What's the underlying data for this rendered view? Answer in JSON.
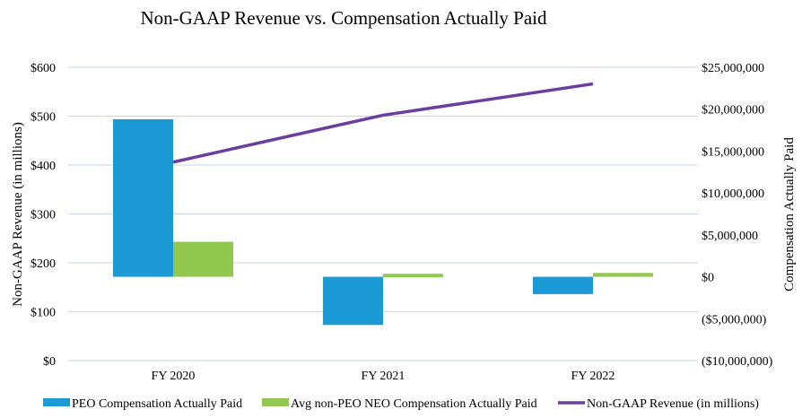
{
  "chart_data": {
    "type": "bar",
    "title": "Non-GAAP Revenue vs. Compensation Actually Paid",
    "categories": [
      "FY 2020",
      "FY 2021",
      "FY 2022"
    ],
    "ylabel": "Non-GAAP Revenue (in millions)",
    "y2label": "Compensation Actually Paid",
    "ylim": [
      0,
      600
    ],
    "y2lim": [
      -10000000,
      25000000
    ],
    "yticks": [
      "$0",
      "$100",
      "$200",
      "$300",
      "$400",
      "$500",
      "$600"
    ],
    "y2ticks": [
      "($10,000,000)",
      "($5,000,000)",
      "$0",
      "$5,000,000",
      "$10,000,000",
      "$15,000,000",
      "$20,000,000",
      "$25,000,000"
    ],
    "grid": true,
    "legend_placement": "bottom",
    "series": [
      {
        "name": "PEO Compensation Actually Paid",
        "kind": "bar",
        "axis": "right",
        "color": "#1b9ad6",
        "values": [
          18800000,
          -5750000,
          -2070000
        ]
      },
      {
        "name": "Avg non-PEO NEO Compensation Actually Paid",
        "kind": "bar",
        "axis": "right",
        "color": "#92c84f",
        "values": [
          4180000,
          360000,
          460000
        ]
      },
      {
        "name": "Non-GAAP Revenue (in millions)",
        "kind": "line",
        "axis": "left",
        "color": "#6b3fa0",
        "values": [
          406,
          502,
          566
        ]
      }
    ]
  }
}
